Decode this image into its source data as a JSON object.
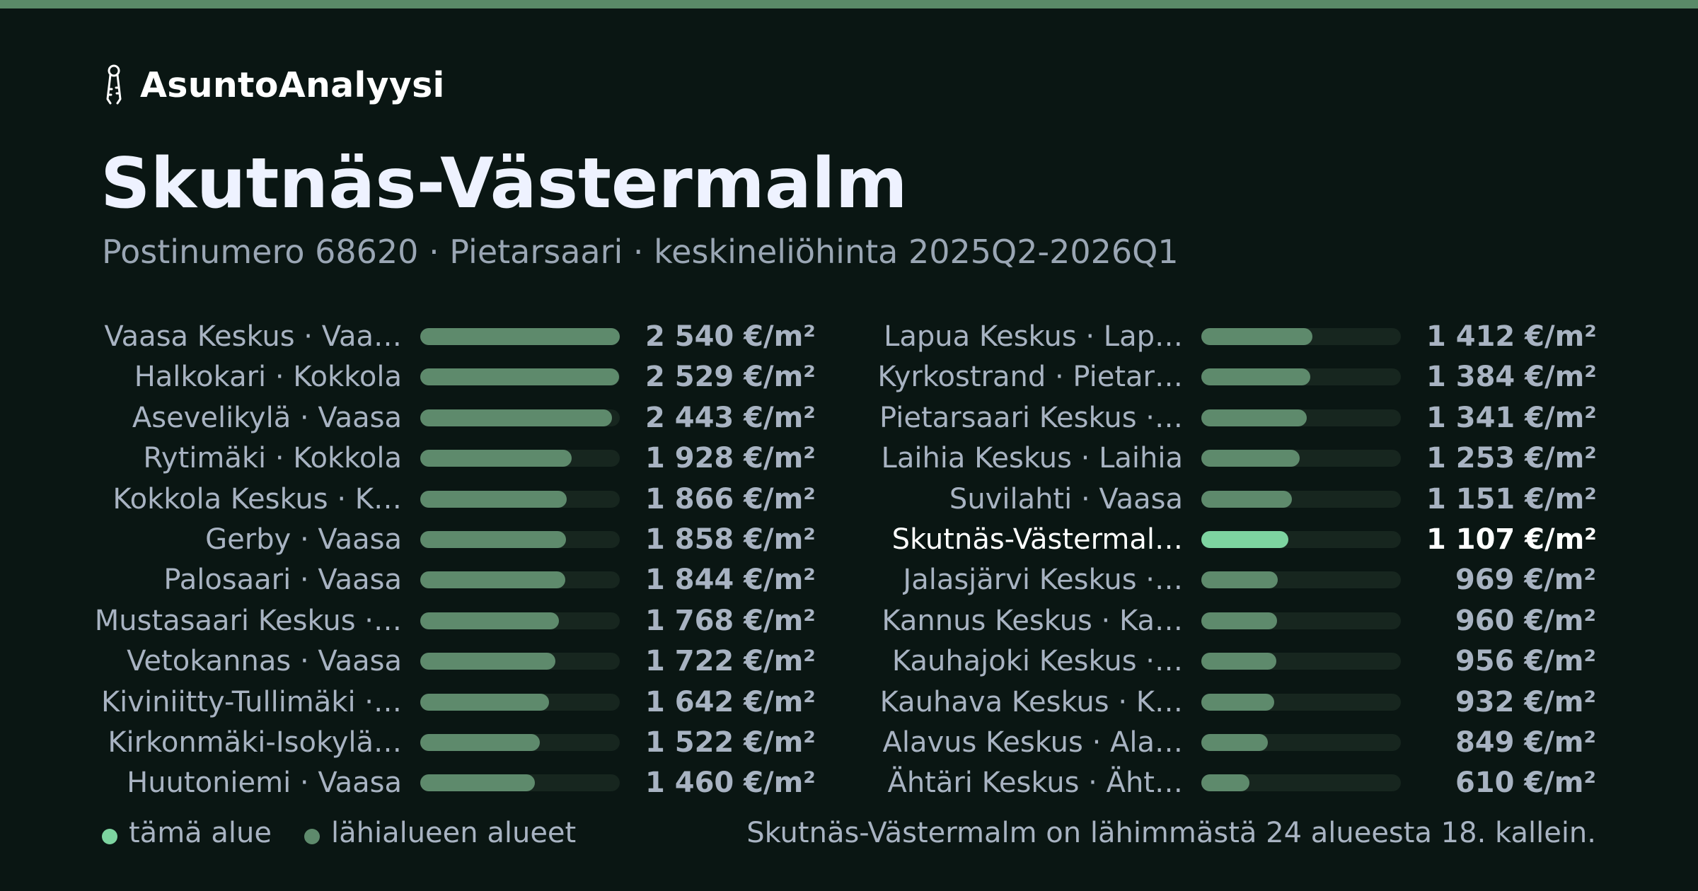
{
  "brand": {
    "name": "AsuntoAnalyysi",
    "icon": "keys-icon"
  },
  "title": "Skutnäs-Västermalm",
  "subtitle": "Postinumero 68620 · Pietarsaari · keskineliöhinta 2025Q2-2026Q1",
  "colors": {
    "background": "#0a1613",
    "top_bar": "#5a8a68",
    "bar_neighbor": "#5e8a6c",
    "bar_current": "#7dd4a0",
    "track": "#17261f"
  },
  "chart_data": {
    "type": "bar",
    "orientation": "horizontal",
    "unit": "€/m²",
    "max_value": 2540,
    "columns": [
      [
        {
          "label": "Vaasa Keskus · Vaa…",
          "value": 2540,
          "value_label": "2 540 €/m²"
        },
        {
          "label": "Halkokari · Kokkola",
          "value": 2529,
          "value_label": "2 529 €/m²"
        },
        {
          "label": "Asevelikylä · Vaasa",
          "value": 2443,
          "value_label": "2 443 €/m²"
        },
        {
          "label": "Rytimäki · Kokkola",
          "value": 1928,
          "value_label": "1 928 €/m²"
        },
        {
          "label": "Kokkola Keskus · K…",
          "value": 1866,
          "value_label": "1 866 €/m²"
        },
        {
          "label": "Gerby · Vaasa",
          "value": 1858,
          "value_label": "1 858 €/m²"
        },
        {
          "label": "Palosaari · Vaasa",
          "value": 1844,
          "value_label": "1 844 €/m²"
        },
        {
          "label": "Mustasaari Keskus ·…",
          "value": 1768,
          "value_label": "1 768 €/m²"
        },
        {
          "label": "Vetokannas · Vaasa",
          "value": 1722,
          "value_label": "1 722 €/m²"
        },
        {
          "label": "Kiviniitty-Tullimäki ·…",
          "value": 1642,
          "value_label": "1 642 €/m²"
        },
        {
          "label": "Kirkonmäki-Isokylä…",
          "value": 1522,
          "value_label": "1 522 €/m²"
        },
        {
          "label": "Huutoniemi · Vaasa",
          "value": 1460,
          "value_label": "1 460 €/m²"
        }
      ],
      [
        {
          "label": "Lapua Keskus · Lap…",
          "value": 1412,
          "value_label": "1 412 €/m²"
        },
        {
          "label": "Kyrkostrand · Pietar…",
          "value": 1384,
          "value_label": "1 384 €/m²"
        },
        {
          "label": "Pietarsaari Keskus ·…",
          "value": 1341,
          "value_label": "1 341 €/m²"
        },
        {
          "label": "Laihia Keskus · Laihia",
          "value": 1253,
          "value_label": "1 253 €/m²"
        },
        {
          "label": "Suvilahti · Vaasa",
          "value": 1151,
          "value_label": "1 151 €/m²"
        },
        {
          "label": "Skutnäs-Västermal…",
          "value": 1107,
          "value_label": "1 107 €/m²",
          "current": true
        },
        {
          "label": "Jalasjärvi Keskus ·…",
          "value": 969,
          "value_label": "969 €/m²"
        },
        {
          "label": "Kannus Keskus · Ka…",
          "value": 960,
          "value_label": "960 €/m²"
        },
        {
          "label": "Kauhajoki Keskus ·…",
          "value": 956,
          "value_label": "956 €/m²"
        },
        {
          "label": "Kauhava Keskus · K…",
          "value": 932,
          "value_label": "932 €/m²"
        },
        {
          "label": "Alavus Keskus · Ala…",
          "value": 849,
          "value_label": "849 €/m²"
        },
        {
          "label": "Ähtäri Keskus · Äht…",
          "value": 610,
          "value_label": "610 €/m²"
        }
      ]
    ]
  },
  "legend": {
    "current": {
      "label": "tämä alue",
      "color": "#7dd4a0"
    },
    "neighbors": {
      "label": "lähialueen alueet",
      "color": "#5e8a6c"
    }
  },
  "rank_text": "Skutnäs-Västermalm on lähimmästä 24 alueesta 18. kallein."
}
